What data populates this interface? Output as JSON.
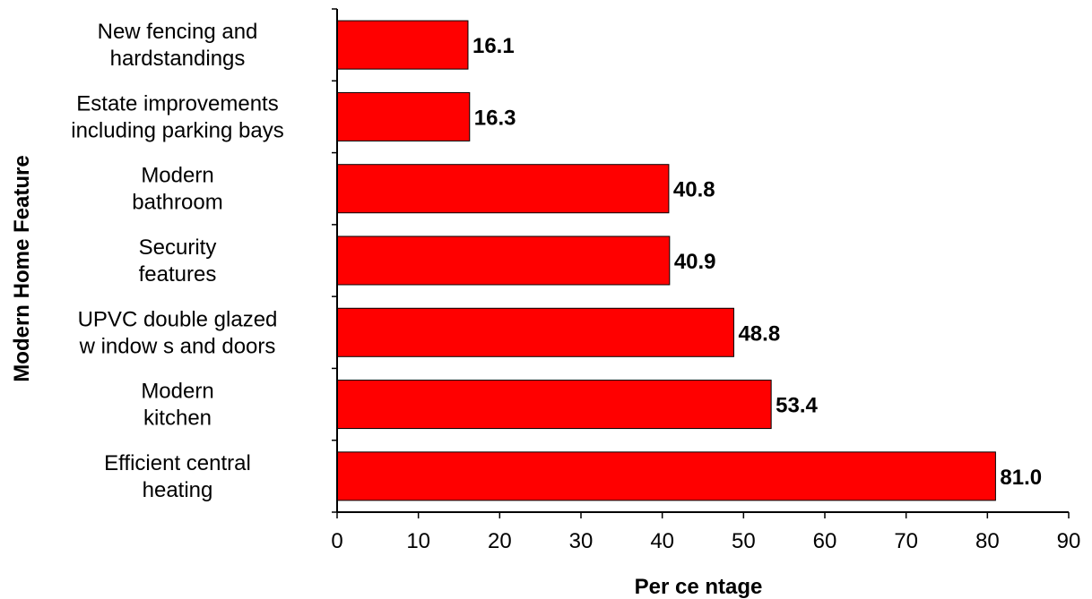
{
  "chart_data": {
    "type": "bar",
    "orientation": "horizontal",
    "categories": [
      [
        "Efficient central",
        "heating"
      ],
      [
        "Modern",
        "kitchen"
      ],
      [
        "UPVC double glazed",
        "w indow s and doors"
      ],
      [
        "Security",
        "features"
      ],
      [
        "Modern",
        "bathroom"
      ],
      [
        "Estate improvements",
        "including parking bays"
      ],
      [
        "New  fencing and",
        "hardstandings"
      ]
    ],
    "values": [
      81.0,
      53.4,
      48.8,
      40.9,
      40.8,
      16.3,
      16.1
    ],
    "value_labels": [
      "81.0",
      "53.4",
      "48.8",
      "40.9",
      "40.8",
      "16.3",
      "16.1"
    ],
    "xlabel": "Per ce ntage",
    "ylabel": "Modern Home Feature",
    "xlim": [
      0,
      90
    ],
    "xticks": [
      0,
      10,
      20,
      30,
      40,
      50,
      60,
      70,
      80,
      90
    ],
    "grid": false,
    "legend": "none",
    "bar_color": "#ff0000",
    "bar_stroke": "#000000"
  }
}
